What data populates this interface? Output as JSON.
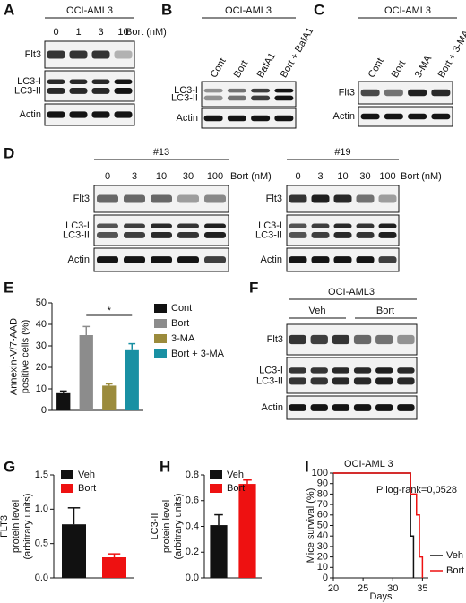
{
  "panels": {
    "A": {
      "label": "A",
      "cell": "OCI-AML3",
      "lanes": [
        "0",
        "1",
        "3",
        "10"
      ],
      "treatment": "Bort (nM)",
      "rows": [
        "Flt3",
        [
          "LC3-I",
          "LC3-II"
        ],
        "Actin"
      ]
    },
    "B": {
      "label": "B",
      "cell": "OCI-AML3",
      "lanes": [
        "Cont",
        "Bort",
        "BafA1",
        "Bort + BafA1"
      ],
      "rows": [
        [
          "LC3-I",
          "LC3-II"
        ],
        "Actin"
      ]
    },
    "C": {
      "label": "C",
      "cell": "OCI-AML3",
      "lanes": [
        "Cont",
        "Bort",
        "3-MA",
        "Bort + 3-MA"
      ],
      "rows": [
        "Flt3",
        "Actin"
      ]
    },
    "D": {
      "label": "D",
      "blots": [
        {
          "clone": "#13",
          "lanes": [
            "0",
            "3",
            "10",
            "30",
            "100"
          ],
          "treatment": "Bort (nM)",
          "rows": [
            "Flt3",
            [
              "LC3-I",
              "LC3-II"
            ],
            "Actin"
          ]
        },
        {
          "clone": "#19",
          "lanes": [
            "0",
            "3",
            "10",
            "30",
            "100"
          ],
          "treatment": "Bort (nM)",
          "rows": [
            "Flt3",
            [
              "LC3-I",
              "LC3-II"
            ],
            "Actin"
          ]
        }
      ]
    },
    "F": {
      "label": "F",
      "cell": "OCI-AML3",
      "groups": [
        "Veh",
        "Bort"
      ],
      "rows": [
        "Flt3",
        [
          "LC3-I",
          "LC3-II"
        ],
        "Actin"
      ]
    }
  },
  "chart_data": [
    {
      "panel": "E",
      "type": "bar",
      "ylabel": [
        "Annexin-V/7-AAD",
        "positive cells (%)"
      ],
      "categories": [
        "Cont",
        "Bort",
        "3-MA",
        "Bort + 3-MA"
      ],
      "values": [
        8,
        35,
        11.5,
        28
      ],
      "errors": [
        1,
        4,
        0.8,
        3
      ],
      "colors": [
        "#111111",
        "#8c8c8c",
        "#9b8b3c",
        "#1990a3"
      ],
      "ylim": [
        0,
        50
      ],
      "yticks": [
        0,
        10,
        20,
        30,
        40,
        50
      ],
      "annotation": "*"
    },
    {
      "panel": "G",
      "type": "bar",
      "ylabel": [
        "FLT3",
        "protein level",
        "(arbitrary units)"
      ],
      "categories": [
        "Veh",
        "Bort"
      ],
      "values": [
        0.78,
        0.3
      ],
      "errors": [
        0.24,
        0.05
      ],
      "colors": [
        "#111111",
        "#ee1111"
      ],
      "ylim": [
        0,
        1.5
      ],
      "yticks": [
        {
          "value": 0,
          "label": "0.0"
        },
        0.5,
        {
          "value": 1,
          "label": "1.0"
        },
        1.5
      ]
    },
    {
      "panel": "H",
      "type": "bar",
      "ylabel": [
        "LC3-II",
        "protein level",
        "(arbitrary units)"
      ],
      "categories": [
        "Veh",
        "Bort"
      ],
      "values": [
        0.41,
        0.73
      ],
      "errors": [
        0.08,
        0.03
      ],
      "colors": [
        "#111111",
        "#ee1111"
      ],
      "ylim": [
        0,
        0.8
      ],
      "yticks": [
        {
          "value": 0,
          "label": "0.0"
        },
        0.2,
        0.4,
        0.6,
        0.8
      ]
    },
    {
      "panel": "I",
      "type": "line",
      "title": "OCI-AML 3",
      "xlabel": "Days",
      "ylabel": "Mice survival (%)",
      "annotation": "P log-rank=0,0528",
      "series": [
        {
          "name": "Veh",
          "color": "#111111",
          "x": [
            20,
            33,
            33,
            33.5,
            33.5
          ],
          "values": [
            100,
            100,
            40,
            40,
            0
          ]
        },
        {
          "name": "Bort",
          "color": "#ee1111",
          "x": [
            20,
            33,
            33,
            34,
            34,
            34.5,
            34.5,
            35,
            35
          ],
          "values": [
            100,
            100,
            80,
            80,
            60,
            60,
            20,
            20,
            0
          ]
        }
      ],
      "xlim": [
        20,
        36
      ],
      "xticks": [
        20,
        25,
        30,
        35
      ],
      "ylim": [
        0,
        100
      ],
      "yticks": [
        0,
        10,
        20,
        30,
        40,
        50,
        60,
        70,
        80,
        90,
        100
      ]
    }
  ]
}
